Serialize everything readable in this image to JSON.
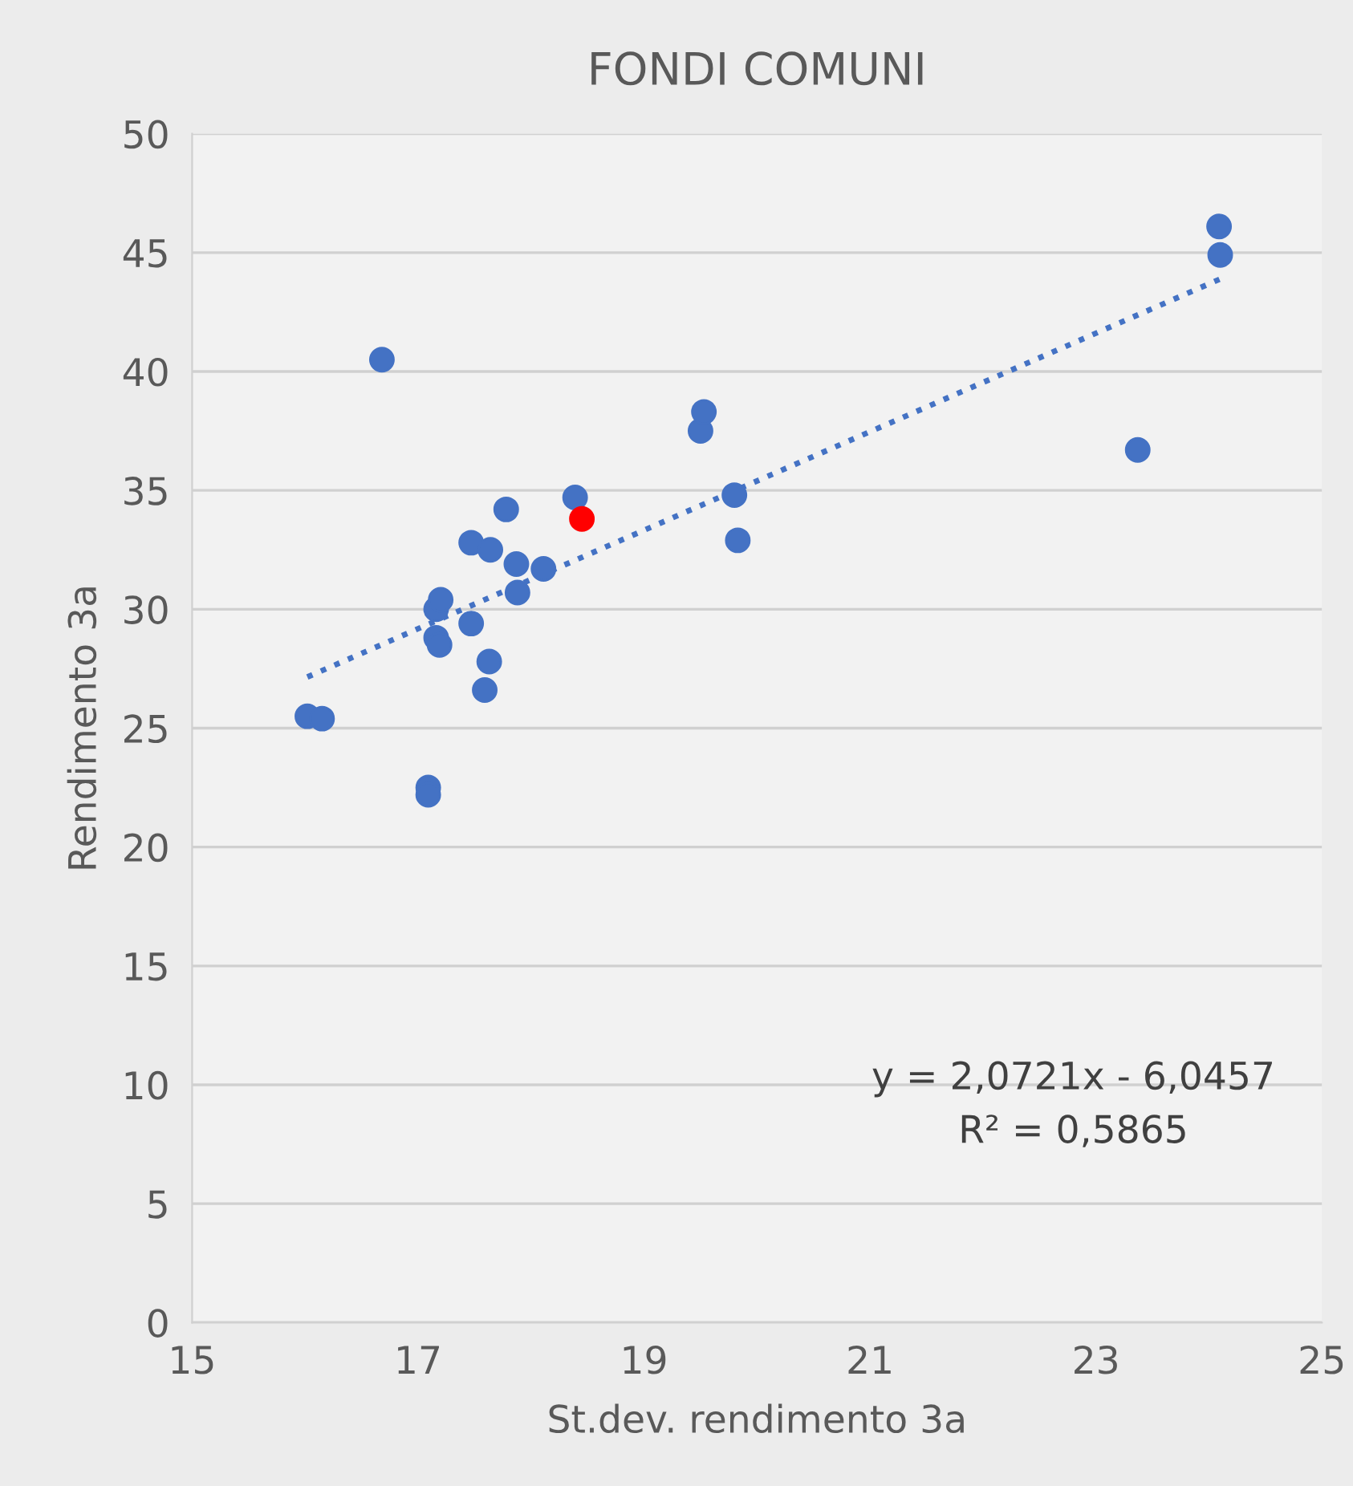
{
  "chart_data": {
    "type": "scatter",
    "title": "FONDI COMUNI",
    "xlabel": "St.dev. rendimento 3a",
    "ylabel": "Rendimento 3a",
    "xlim": [
      15,
      25
    ],
    "xticks": [
      15,
      17,
      19,
      21,
      23,
      25
    ],
    "ylim": [
      0,
      50
    ],
    "yticks": [
      0,
      5,
      10,
      15,
      20,
      25,
      30,
      35,
      40,
      45,
      50
    ],
    "grid": "y",
    "marker": "circle",
    "series": [
      {
        "color": "#4472c4",
        "x": [
          16.02,
          16.15,
          16.68,
          17.09,
          17.09,
          17.16,
          17.19,
          17.16,
          17.2,
          17.47,
          17.47,
          17.64,
          17.63,
          17.59,
          17.78,
          17.87,
          17.88,
          18.11,
          18.39,
          19.5,
          19.53,
          19.8,
          19.83,
          23.37,
          24.09,
          24.1
        ],
        "values": [
          25.5,
          25.4,
          40.5,
          22.5,
          22.2,
          28.8,
          28.5,
          30.0,
          30.4,
          32.8,
          29.4,
          32.5,
          27.8,
          26.6,
          34.2,
          31.9,
          30.7,
          31.7,
          34.7,
          37.5,
          38.3,
          34.8,
          32.9,
          36.7,
          46.1,
          44.9
        ]
      },
      {
        "color": "#ff0000",
        "x": [
          18.45
        ],
        "values": [
          33.8
        ]
      },
      {
        "type": "line",
        "color": "#4472c4",
        "line_style": "dotted",
        "marker": "none",
        "x": [
          16.02,
          24.1
        ],
        "values": [
          27.15,
          43.89
        ]
      }
    ],
    "annotations": [
      "y = 2,0721x - 6,0457",
      "R² = 0,5865"
    ]
  }
}
